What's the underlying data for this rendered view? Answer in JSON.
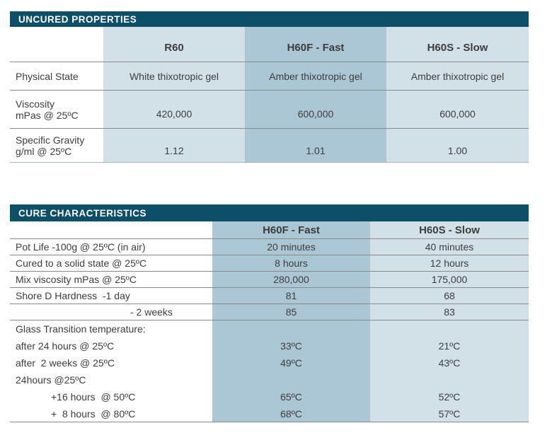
{
  "colors": {
    "title_bar_background": "#0d4e68",
    "title_bar_text": "#ffffff",
    "light_column_background": "#d2e0e7",
    "dark_column_background": "#abc6d4",
    "row_line": "#8a8a8a",
    "body_text": "#3d3d3d"
  },
  "uncured": {
    "title": "UNCURED PROPERTIES",
    "columns": [
      "R60",
      "H60F - Fast",
      "H60S - Slow"
    ],
    "rows": [
      {
        "label": "Physical State",
        "label2": "",
        "values": [
          "White thixotropic gel",
          "Amber thixotropic gel",
          "Amber thixotropic gel"
        ]
      },
      {
        "label": "Viscosity",
        "label2": "mPas @ 25ºC",
        "values": [
          "420,000",
          "600,000",
          "600,000"
        ]
      },
      {
        "label": "Specific Gravity",
        "label2": "g/ml @ 25ºC",
        "values": [
          "1.12",
          "1.01",
          "1.00"
        ]
      }
    ]
  },
  "cure": {
    "title": "CURE CHARACTERISTICS",
    "columns": [
      "H60F - Fast",
      "H60S - Slow"
    ],
    "rows": [
      {
        "label": "Pot Life -100g @ 25ºC (in air)",
        "values": [
          "20 minutes",
          "40 minutes"
        ]
      },
      {
        "label": "Cured to a solid state @ 25ºC",
        "values": [
          "8 hours",
          "12 hours"
        ]
      },
      {
        "label": "Mix viscosity mPas @ 25ºC",
        "values": [
          "280,000",
          "175,000"
        ]
      },
      {
        "label": "Shore D Hardness  -1 day",
        "values": [
          "81",
          "68"
        ]
      },
      {
        "label": "- 2 weeks",
        "values": [
          "85",
          "83"
        ]
      },
      {
        "label": "Glass Transition temperature:",
        "values": [
          "",
          ""
        ]
      },
      {
        "label": "after 24 hours @ 25ºC",
        "values": [
          "33ºC",
          "21ºC"
        ]
      },
      {
        "label": "after  2 weeks @ 25ºC",
        "values": [
          "49ºC",
          "43ºC"
        ]
      },
      {
        "label": "24hours @25ºC",
        "values": [
          "",
          ""
        ]
      },
      {
        "label": "+16 hours  @ 50ºC",
        "values": [
          "65ºC",
          "52ºC"
        ]
      },
      {
        "label": "+  8 hours  @ 80ºC",
        "values": [
          "68ºC",
          "57ºC"
        ]
      }
    ]
  }
}
